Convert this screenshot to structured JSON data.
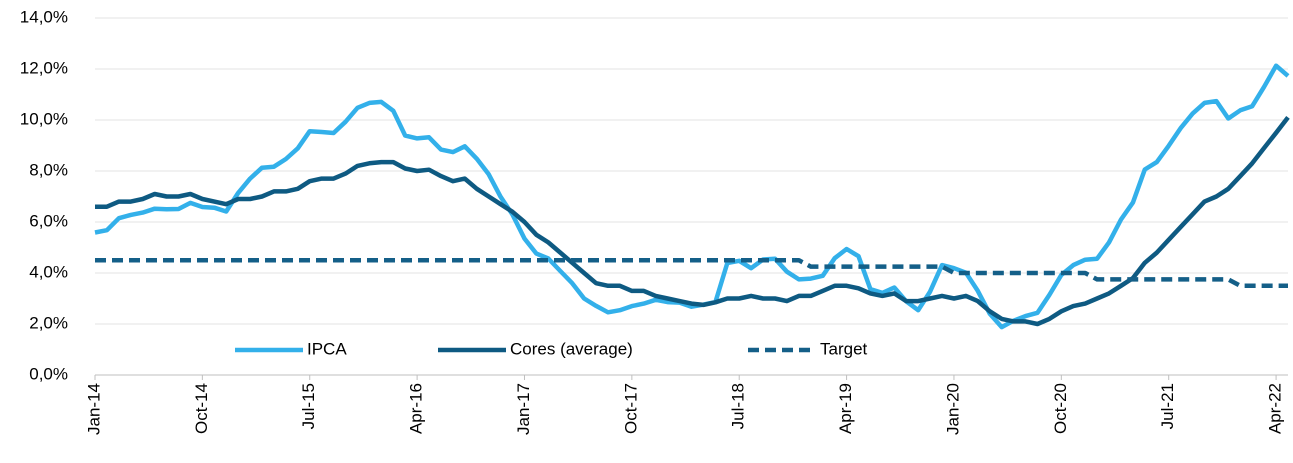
{
  "chart_data": {
    "type": "line",
    "categories": [
      "Jan-14",
      null,
      null,
      null,
      null,
      null,
      null,
      null,
      null,
      "Oct-14",
      null,
      null,
      null,
      null,
      null,
      null,
      null,
      null,
      "Jul-15",
      null,
      null,
      null,
      null,
      null,
      null,
      null,
      null,
      "Apr-16",
      null,
      null,
      null,
      null,
      null,
      null,
      null,
      null,
      "Jan-17",
      null,
      null,
      null,
      null,
      null,
      null,
      null,
      null,
      "Oct-17",
      null,
      null,
      null,
      null,
      null,
      null,
      null,
      null,
      "Jul-18",
      null,
      null,
      null,
      null,
      null,
      null,
      null,
      null,
      "Apr-19",
      null,
      null,
      null,
      null,
      null,
      null,
      null,
      null,
      "Jan-20",
      null,
      null,
      null,
      null,
      null,
      null,
      null,
      null,
      "Oct-20",
      null,
      null,
      null,
      null,
      null,
      null,
      null,
      null,
      "Jul-21",
      null,
      null,
      null,
      null,
      null,
      null,
      null,
      null,
      "Apr-22",
      null
    ],
    "series": [
      {
        "name": "IPCA",
        "color": "#33b0ea",
        "dashed": false,
        "values": [
          5.59,
          5.68,
          6.15,
          6.28,
          6.37,
          6.52,
          6.5,
          6.51,
          6.75,
          6.59,
          6.56,
          6.41,
          7.14,
          7.7,
          8.13,
          8.17,
          8.47,
          8.89,
          9.56,
          9.53,
          9.49,
          9.93,
          10.48,
          10.67,
          10.71,
          10.36,
          9.39,
          9.28,
          9.32,
          8.84,
          8.74,
          8.97,
          8.48,
          7.87,
          6.99,
          6.29,
          5.35,
          4.76,
          4.57,
          4.08,
          3.6,
          3.0,
          2.71,
          2.46,
          2.54,
          2.7,
          2.8,
          2.95,
          2.86,
          2.84,
          2.68,
          2.76,
          2.86,
          4.39,
          4.48,
          4.19,
          4.53,
          4.56,
          4.05,
          3.75,
          3.78,
          3.89,
          4.58,
          4.94,
          4.66,
          3.37,
          3.22,
          3.43,
          2.89,
          2.54,
          3.27,
          4.31,
          4.19,
          4.01,
          3.3,
          2.4,
          1.88,
          2.13,
          2.31,
          2.44,
          3.14,
          3.92,
          4.31,
          4.52,
          4.56,
          5.2,
          6.1,
          6.76,
          8.06,
          8.35,
          8.99,
          9.68,
          10.25,
          10.67,
          10.74,
          10.06,
          10.38,
          10.54,
          11.3,
          12.13,
          11.73
        ]
      },
      {
        "name": "Cores (average)",
        "color": "#0e5a82",
        "dashed": false,
        "values": [
          6.6,
          6.6,
          6.8,
          6.8,
          6.9,
          7.1,
          7.0,
          7.0,
          7.1,
          6.9,
          6.8,
          6.7,
          6.9,
          6.9,
          7.0,
          7.2,
          7.2,
          7.3,
          7.6,
          7.7,
          7.7,
          7.9,
          8.2,
          8.3,
          8.35,
          8.35,
          8.1,
          8.0,
          8.05,
          7.8,
          7.6,
          7.7,
          7.3,
          7.0,
          6.7,
          6.4,
          6.0,
          5.5,
          5.2,
          4.8,
          4.4,
          4.0,
          3.6,
          3.5,
          3.5,
          3.3,
          3.3,
          3.1,
          3.0,
          2.9,
          2.8,
          2.75,
          2.85,
          3.0,
          3.0,
          3.1,
          3.0,
          3.0,
          2.9,
          3.1,
          3.1,
          3.3,
          3.5,
          3.5,
          3.4,
          3.2,
          3.1,
          3.2,
          2.9,
          2.9,
          3.0,
          3.1,
          3.0,
          3.1,
          2.9,
          2.5,
          2.2,
          2.1,
          2.1,
          2.0,
          2.2,
          2.5,
          2.7,
          2.8,
          3.0,
          3.2,
          3.5,
          3.8,
          4.4,
          4.8,
          5.3,
          5.8,
          6.3,
          6.8,
          7.0,
          7.3,
          7.8,
          8.3,
          8.9,
          9.5,
          10.1
        ]
      },
      {
        "name": "Target",
        "color": "#145f88",
        "dashed": true,
        "values": [
          4.5,
          4.5,
          4.5,
          4.5,
          4.5,
          4.5,
          4.5,
          4.5,
          4.5,
          4.5,
          4.5,
          4.5,
          4.5,
          4.5,
          4.5,
          4.5,
          4.5,
          4.5,
          4.5,
          4.5,
          4.5,
          4.5,
          4.5,
          4.5,
          4.5,
          4.5,
          4.5,
          4.5,
          4.5,
          4.5,
          4.5,
          4.5,
          4.5,
          4.5,
          4.5,
          4.5,
          4.5,
          4.5,
          4.5,
          4.5,
          4.5,
          4.5,
          4.5,
          4.5,
          4.5,
          4.5,
          4.5,
          4.5,
          4.5,
          4.5,
          4.5,
          4.5,
          4.5,
          4.5,
          4.5,
          4.5,
          4.5,
          4.5,
          4.5,
          4.5,
          4.25,
          4.25,
          4.25,
          4.25,
          4.25,
          4.25,
          4.25,
          4.25,
          4.25,
          4.25,
          4.25,
          4.25,
          4.0,
          4.0,
          4.0,
          4.0,
          4.0,
          4.0,
          4.0,
          4.0,
          4.0,
          4.0,
          4.0,
          4.0,
          3.75,
          3.75,
          3.75,
          3.75,
          3.75,
          3.75,
          3.75,
          3.75,
          3.75,
          3.75,
          3.75,
          3.75,
          3.5,
          3.5,
          3.5,
          3.5,
          3.5
        ]
      }
    ],
    "ylim": [
      0,
      14
    ],
    "yticks": [
      {
        "value": 0,
        "label": "0,0%"
      },
      {
        "value": 2,
        "label": "2,0%"
      },
      {
        "value": 4,
        "label": "4,0%"
      },
      {
        "value": 6,
        "label": "6,0%"
      },
      {
        "value": 8,
        "label": "8,0%"
      },
      {
        "value": 10,
        "label": "10,0%"
      },
      {
        "value": 12,
        "label": "12,0%"
      },
      {
        "value": 14,
        "label": "14,0%"
      }
    ],
    "grid": true
  }
}
